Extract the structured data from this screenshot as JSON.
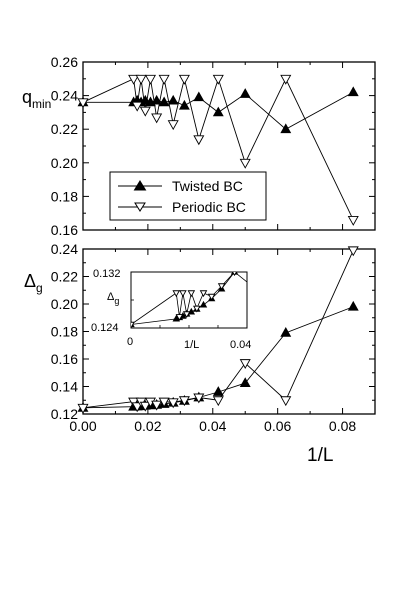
{
  "chart_data": [
    {
      "panel": "top",
      "type": "line",
      "ylabel_main": "q",
      "ylabel_sub": "min",
      "xlim": [
        0,
        0.09
      ],
      "ylim": [
        0.16,
        0.26
      ],
      "yticks": [
        "0.16",
        "0.18",
        "0.20",
        "0.22",
        "0.24",
        "0.26"
      ],
      "legend": {
        "position": "bottom-left"
      },
      "series": [
        {
          "name": "Twisted BC",
          "marker": "filled-triangle-up",
          "points": [
            {
              "x": 0.0,
              "y": 0.236
            },
            {
              "x": 0.0156,
              "y": 0.236
            },
            {
              "x": 0.0167,
              "y": 0.237
            },
            {
              "x": 0.0179,
              "y": 0.236
            },
            {
              "x": 0.0192,
              "y": 0.237
            },
            {
              "x": 0.0208,
              "y": 0.236
            },
            {
              "x": 0.0227,
              "y": 0.237
            },
            {
              "x": 0.025,
              "y": 0.236
            },
            {
              "x": 0.0278,
              "y": 0.237
            },
            {
              "x": 0.03125,
              "y": 0.234
            },
            {
              "x": 0.0357,
              "y": 0.239
            },
            {
              "x": 0.0417,
              "y": 0.23
            },
            {
              "x": 0.05,
              "y": 0.241
            },
            {
              "x": 0.0625,
              "y": 0.22
            },
            {
              "x": 0.0833,
              "y": 0.242
            }
          ]
        },
        {
          "name": "Periodic BC",
          "marker": "open-triangle-down",
          "points": [
            {
              "x": 0.0,
              "y": 0.236
            },
            {
              "x": 0.0156,
              "y": 0.25
            },
            {
              "x": 0.0167,
              "y": 0.234
            },
            {
              "x": 0.0179,
              "y": 0.25
            },
            {
              "x": 0.0192,
              "y": 0.231
            },
            {
              "x": 0.0208,
              "y": 0.25
            },
            {
              "x": 0.0227,
              "y": 0.227
            },
            {
              "x": 0.025,
              "y": 0.25
            },
            {
              "x": 0.0278,
              "y": 0.223
            },
            {
              "x": 0.03125,
              "y": 0.25
            },
            {
              "x": 0.0357,
              "y": 0.214
            },
            {
              "x": 0.0417,
              "y": 0.25
            },
            {
              "x": 0.05,
              "y": 0.2
            },
            {
              "x": 0.0625,
              "y": 0.25
            },
            {
              "x": 0.0833,
              "y": 0.166
            }
          ]
        }
      ]
    },
    {
      "panel": "bottom",
      "type": "line",
      "ylabel_main": "Δ",
      "ylabel_sub": "g",
      "xlabel": "1/L",
      "xlim": [
        0,
        0.09
      ],
      "ylim": [
        0.12,
        0.24
      ],
      "xticks": [
        "0.00",
        "0.02",
        "0.04",
        "0.06",
        "0.08"
      ],
      "yticks": [
        "0.12",
        "0.14",
        "0.16",
        "0.18",
        "0.20",
        "0.22",
        "0.24"
      ],
      "series": [
        {
          "name": "Twisted BC",
          "marker": "filled-triangle-up",
          "points": [
            {
              "x": 0.0,
              "y": 0.1245
            },
            {
              "x": 0.0156,
              "y": 0.1253
            },
            {
              "x": 0.0167,
              "y": 0.1255
            },
            {
              "x": 0.0179,
              "y": 0.1257
            },
            {
              "x": 0.0192,
              "y": 0.126
            },
            {
              "x": 0.0208,
              "y": 0.1263
            },
            {
              "x": 0.0227,
              "y": 0.1267
            },
            {
              "x": 0.025,
              "y": 0.1273
            },
            {
              "x": 0.0278,
              "y": 0.1282
            },
            {
              "x": 0.03125,
              "y": 0.1296
            },
            {
              "x": 0.0357,
              "y": 0.132
            },
            {
              "x": 0.0417,
              "y": 0.136
            },
            {
              "x": 0.05,
              "y": 0.1425
            },
            {
              "x": 0.0625,
              "y": 0.179
            },
            {
              "x": 0.0833,
              "y": 0.198
            }
          ]
        },
        {
          "name": "Periodic BC",
          "marker": "open-triangle-down",
          "points": [
            {
              "x": 0.0,
              "y": 0.1245
            },
            {
              "x": 0.0156,
              "y": 0.129
            },
            {
              "x": 0.0167,
              "y": 0.1256
            },
            {
              "x": 0.0179,
              "y": 0.129
            },
            {
              "x": 0.0192,
              "y": 0.126
            },
            {
              "x": 0.0208,
              "y": 0.129
            },
            {
              "x": 0.0227,
              "y": 0.1268
            },
            {
              "x": 0.025,
              "y": 0.129
            },
            {
              "x": 0.0278,
              "y": 0.1285
            },
            {
              "x": 0.03125,
              "y": 0.13
            },
            {
              "x": 0.0357,
              "y": 0.132
            },
            {
              "x": 0.0417,
              "y": 0.13
            },
            {
              "x": 0.05,
              "y": 0.157
            },
            {
              "x": 0.0625,
              "y": 0.13
            },
            {
              "x": 0.0833,
              "y": 0.239
            }
          ]
        }
      ],
      "inset": {
        "ylabel_main": "Δ",
        "ylabel_sub": "g",
        "xlabel": "1/L",
        "xlim": [
          0,
          0.04
        ],
        "ylim": [
          0.124,
          0.132
        ],
        "xtick_labels": [
          "0",
          "0.04"
        ],
        "ytick_labels": [
          "0.124",
          "0.132"
        ]
      }
    }
  ]
}
